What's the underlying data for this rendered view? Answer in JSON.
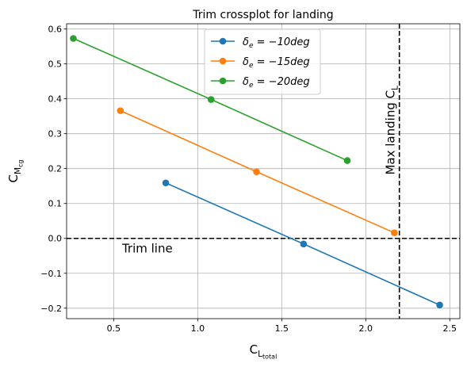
{
  "chart_data": {
    "type": "line",
    "title": "Trim crossplot for landing",
    "xlabel": {
      "main": "C",
      "sub": "L",
      "subsub": "total"
    },
    "ylabel": {
      "main": "C",
      "sub": "M",
      "subsub": "cg"
    },
    "xlim": [
      0.22,
      2.56
    ],
    "ylim": [
      -0.23,
      0.615
    ],
    "x_ticks": [
      0.5,
      1.0,
      1.5,
      2.0,
      2.5
    ],
    "x_tick_labels": [
      "0.5",
      "1.0",
      "1.5",
      "2.0",
      "2.5"
    ],
    "y_ticks": [
      -0.2,
      -0.1,
      0.0,
      0.1,
      0.2,
      0.3,
      0.4,
      0.5,
      0.6
    ],
    "y_tick_labels": [
      "−0.2",
      "−0.1",
      "0.0",
      "0.1",
      "0.2",
      "0.3",
      "0.4",
      "0.5",
      "0.6"
    ],
    "grid": true,
    "legend_position": "top-center",
    "series": [
      {
        "name": "δe = −10deg",
        "legend": {
          "delta": "δ",
          "sub": "e",
          "rest": " = −10deg"
        },
        "color": "#1f77b4",
        "x": [
          0.81,
          1.63,
          2.44
        ],
        "y": [
          0.159,
          -0.016,
          -0.191
        ]
      },
      {
        "name": "δe = −15deg",
        "legend": {
          "delta": "δ",
          "sub": "e",
          "rest": " = −15deg"
        },
        "color": "#ff7f0e",
        "x": [
          0.54,
          1.35,
          2.17
        ],
        "y": [
          0.366,
          0.191,
          0.016
        ]
      },
      {
        "name": "δe = −20deg",
        "legend": {
          "delta": "δ",
          "sub": "e",
          "rest": " = −20deg"
        },
        "color": "#2ca02c",
        "x": [
          0.26,
          1.08,
          1.89
        ],
        "y": [
          0.573,
          0.398,
          0.223
        ]
      }
    ],
    "reference_lines": [
      {
        "orientation": "horizontal",
        "value": 0.0,
        "style": "dashed",
        "color": "#000000",
        "label": "Trim line"
      },
      {
        "orientation": "vertical",
        "value": 2.2,
        "style": "dashed",
        "color": "#000000",
        "label": "Max landing C",
        "label_sub": "L"
      }
    ]
  }
}
